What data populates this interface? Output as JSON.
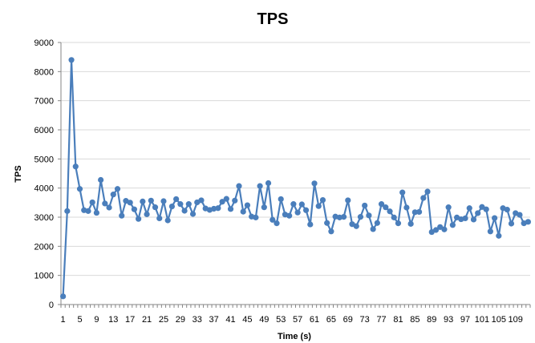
{
  "chart_data": {
    "type": "line",
    "title": "TPS",
    "xlabel": "Time (s)",
    "ylabel": "TPS",
    "ylim": [
      0,
      9000
    ],
    "ytick_step": 1000,
    "grid": "horizontal",
    "legend": "none",
    "x_tick_every": 4,
    "colors": {
      "series": "#4a7ebb",
      "grid": "#d9d9d9",
      "axis": "#868686"
    },
    "series": [
      {
        "name": "TPS",
        "x": [
          1,
          2,
          3,
          4,
          5,
          6,
          7,
          8,
          9,
          10,
          11,
          12,
          13,
          14,
          15,
          16,
          17,
          18,
          19,
          20,
          21,
          22,
          23,
          24,
          25,
          26,
          27,
          28,
          29,
          30,
          31,
          32,
          33,
          34,
          35,
          36,
          37,
          38,
          39,
          40,
          41,
          42,
          43,
          44,
          45,
          46,
          47,
          48,
          49,
          50,
          51,
          52,
          53,
          54,
          55,
          56,
          57,
          58,
          59,
          60,
          61,
          62,
          63,
          64,
          65,
          66,
          67,
          68,
          69,
          70,
          71,
          72,
          73,
          74,
          75,
          76,
          77,
          78,
          79,
          80,
          81,
          82,
          83,
          84,
          85,
          86,
          87,
          88,
          89,
          90,
          91,
          92,
          93,
          94,
          95,
          96,
          97,
          98,
          99,
          100,
          101,
          102,
          103,
          104,
          105,
          106,
          107,
          108,
          109,
          110,
          111,
          112
        ],
        "values": [
          280,
          3210,
          8400,
          4740,
          3970,
          3240,
          3210,
          3510,
          3150,
          4280,
          3470,
          3330,
          3780,
          3970,
          3050,
          3560,
          3500,
          3270,
          2940,
          3540,
          3100,
          3570,
          3340,
          2960,
          3550,
          2890,
          3370,
          3620,
          3450,
          3220,
          3450,
          3110,
          3510,
          3580,
          3300,
          3250,
          3290,
          3310,
          3530,
          3630,
          3280,
          3570,
          4070,
          3190,
          3410,
          3020,
          2990,
          4070,
          3340,
          4170,
          2910,
          2790,
          3620,
          3090,
          3050,
          3450,
          3160,
          3440,
          3240,
          2750,
          4160,
          3380,
          3590,
          2800,
          2510,
          3020,
          2990,
          3010,
          3580,
          2760,
          2690,
          3010,
          3400,
          3060,
          2590,
          2800,
          3450,
          3340,
          3200,
          2990,
          2790,
          3850,
          3330,
          2770,
          3170,
          3180,
          3660,
          3880,
          2490,
          2560,
          2660,
          2580,
          3340,
          2730,
          2990,
          2930,
          2960,
          3310,
          2920,
          3140,
          3350,
          3270,
          2510,
          2970,
          2360,
          3310,
          3260,
          2780,
          3140,
          3080,
          2790,
          2840
        ]
      }
    ],
    "x_tick_labels": [
      "1",
      "5",
      "9",
      "13",
      "17",
      "21",
      "25",
      "29",
      "33",
      "37",
      "41",
      "45",
      "49",
      "53",
      "57",
      "61",
      "65",
      "69",
      "73",
      "77",
      "81",
      "85",
      "89",
      "93",
      "97",
      "101",
      "105",
      "109"
    ],
    "y_tick_labels": [
      "0",
      "1000",
      "2000",
      "3000",
      "4000",
      "5000",
      "6000",
      "7000",
      "8000",
      "9000"
    ]
  }
}
